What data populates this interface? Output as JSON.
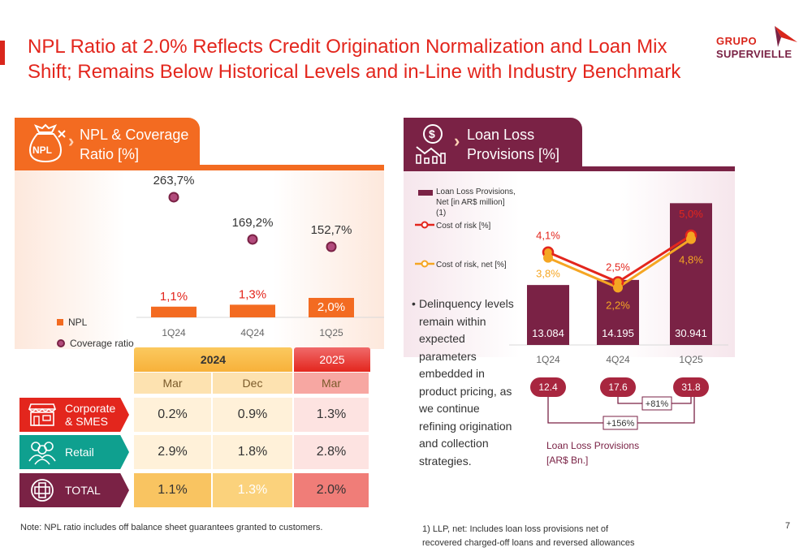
{
  "title": "NPL Ratio at 2.0% Reflects Credit Origination Normalization and Loan Mix Shift; Remains Below Historical Levels and in-Line with Industry Benchmark",
  "logo": {
    "line1": "GRUPO",
    "line2": "SUPERVIELLE"
  },
  "colors": {
    "orange": "#f36b21",
    "maroon": "#7a2245",
    "red": "#e3261d",
    "yellow": "#f5a623"
  },
  "left_panel": {
    "title_line1": "NPL & Coverage",
    "title_line2": "Ratio [%]",
    "icon": "money-bag-icon",
    "legend": {
      "npl": "NPL",
      "coverage": "Coverage ratio"
    }
  },
  "right_panel": {
    "title_line1": "Loan Loss",
    "title_line2": "Provisions [%]",
    "icon": "dollar-chart-icon",
    "legend": {
      "llp_line1": "Loan Loss Provisions,",
      "llp_line2": "Net [in AR$ million]",
      "llp_line3": "(1)",
      "cor": "Cost of risk [%]",
      "cor_net": "Cost of risk, net [%]"
    },
    "bullet": "Delinquency levels remain within expected parameters embedded in product pricing, as we continue refining origination and collection strategies.",
    "llp_bn": {
      "values": [
        "12.4",
        "17.6",
        "31.8"
      ],
      "growth_small": "+81%",
      "growth_large": "+156%",
      "label_line1": "Loan Loss Provisions",
      "label_line2": "[AR$ Bn.]"
    }
  },
  "chart_data": [
    {
      "type": "bar",
      "categories": [
        "1Q24",
        "4Q24",
        "1Q25"
      ],
      "series": [
        {
          "name": "NPL",
          "values": [
            1.1,
            1.3,
            2.0
          ],
          "labels": [
            "1,1%",
            "1,3%",
            "2,0%"
          ]
        },
        {
          "name": "Coverage ratio",
          "values": [
            263.7,
            169.2,
            152.7
          ],
          "labels": [
            "263,7%",
            "169,2%",
            "152,7%"
          ]
        }
      ]
    },
    {
      "type": "bar",
      "categories": [
        "1Q24",
        "4Q24",
        "1Q25"
      ],
      "series": [
        {
          "name": "Loan Loss Provisions, Net [in AR$ million] (1)",
          "values": [
            13084,
            14195,
            30941
          ],
          "labels": [
            "13.084",
            "14.195",
            "30.941"
          ]
        },
        {
          "name": "Cost of risk [%]",
          "values": [
            4.1,
            2.5,
            5.0
          ],
          "labels": [
            "4,1%",
            "2,5%",
            "5,0%"
          ]
        },
        {
          "name": "Cost of risk, net [%]",
          "values": [
            3.8,
            2.2,
            4.8
          ],
          "labels": [
            "3,8%",
            "2,2%",
            "4,8%"
          ]
        }
      ]
    },
    {
      "type": "table",
      "groups": [
        {
          "label": "2024"
        },
        {
          "label": "2025"
        }
      ],
      "columns": [
        "Mar",
        "Dec",
        "Mar"
      ],
      "rows": [
        {
          "label_line1": "Corporate",
          "label_line2": "& SMES",
          "icon": "store-icon",
          "values": [
            "0.2%",
            "0.9%",
            "1.3%"
          ]
        },
        {
          "label_line1": "Retail",
          "label_line2": "",
          "icon": "people-icon",
          "values": [
            "2.9%",
            "1.8%",
            "2.8%"
          ]
        },
        {
          "label_line1": "TOTAL",
          "label_line2": "",
          "icon": "plus-circle-icon",
          "values": [
            "1.1%",
            "1.3%",
            "2.0%"
          ]
        }
      ]
    }
  ],
  "notes": {
    "left": "Note: NPL ratio includes off  balance sheet guarantees granted to customers.",
    "right_line1": "1) LLP, net: Includes loan loss provisions net of",
    "right_line2": "recovered charged-off loans and reversed allowances"
  },
  "page_number": "7"
}
